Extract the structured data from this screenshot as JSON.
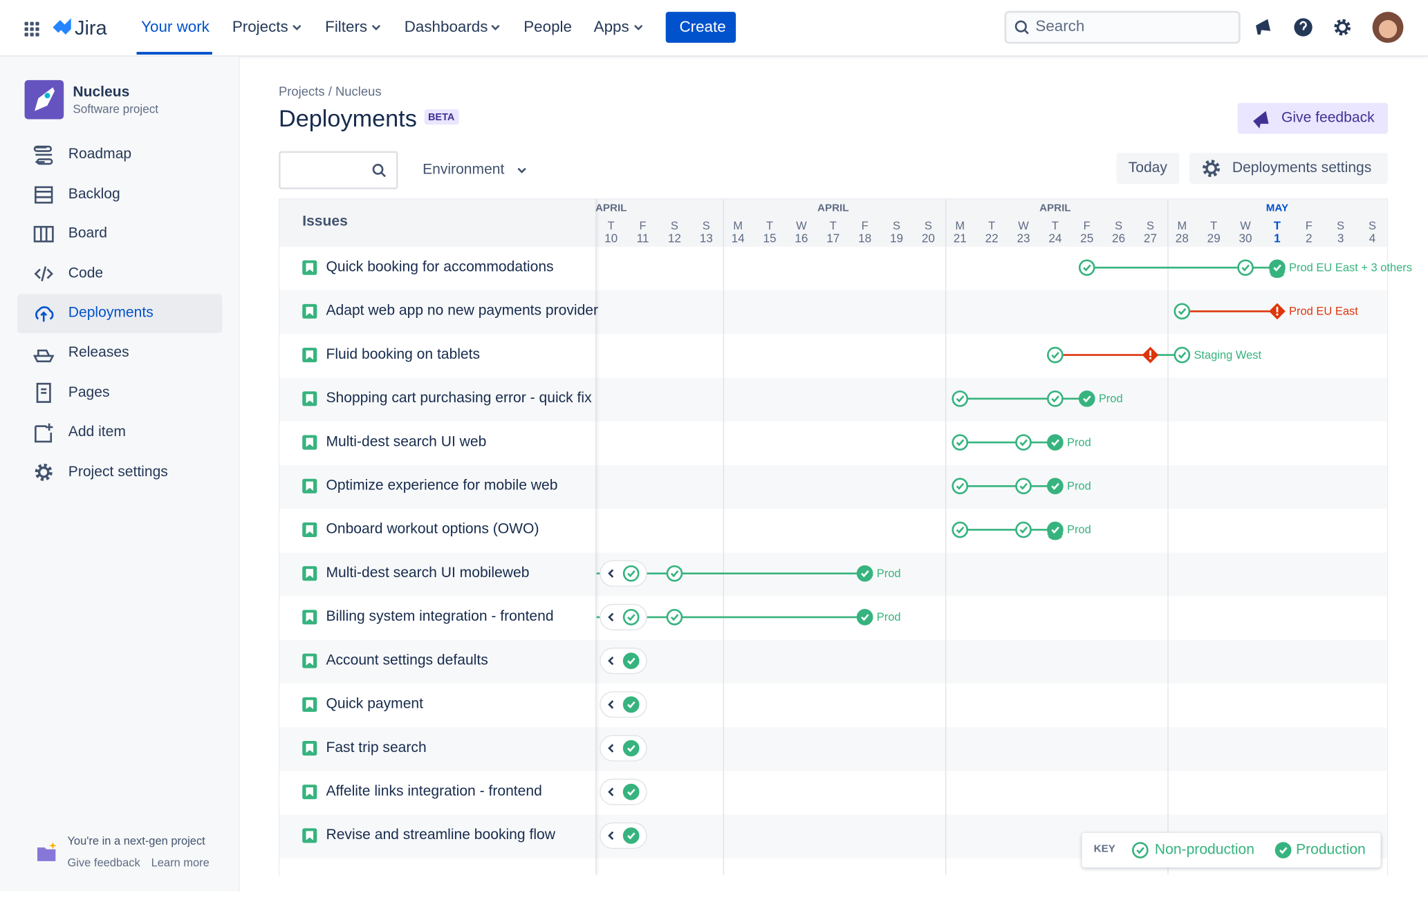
{
  "nav": {
    "logo": "Jira",
    "items": [
      "Your work",
      "Projects",
      "Filters",
      "Dashboards",
      "People",
      "Apps"
    ],
    "create": "Create",
    "search": "Search"
  },
  "sidebar": {
    "project": {
      "name": "Nucleus",
      "type": "Software project"
    },
    "items": [
      "Roadmap",
      "Backlog",
      "Board",
      "Code",
      "Deployments",
      "Releases",
      "Pages",
      "Add item",
      "Project settings"
    ],
    "notice": "You're in a next-gen project",
    "links": [
      "Give feedback",
      "Learn more"
    ]
  },
  "header": {
    "breadcrumb": "Projects / Nucleus",
    "title": "Deployments",
    "badge": "BETA",
    "feedback": "Give feedback"
  },
  "toolbar": {
    "filter": "Environment",
    "today": "Today",
    "settings": "Deployments settings"
  },
  "timeline": {
    "issues_header": "Issues",
    "months": [
      "APRIL",
      "APRIL",
      "APRIL",
      "MAY"
    ],
    "days": [
      {
        "weekday": "T",
        "date": "10"
      },
      {
        "weekday": "F",
        "date": "11"
      },
      {
        "weekday": "S",
        "date": "12"
      },
      {
        "weekday": "S",
        "date": "13"
      },
      {
        "weekday": "M",
        "date": "14"
      },
      {
        "weekday": "T",
        "date": "15"
      },
      {
        "weekday": "W",
        "date": "16"
      },
      {
        "weekday": "T",
        "date": "17"
      },
      {
        "weekday": "F",
        "date": "18"
      },
      {
        "weekday": "S",
        "date": "19"
      },
      {
        "weekday": "S",
        "date": "20"
      },
      {
        "weekday": "M",
        "date": "21"
      },
      {
        "weekday": "T",
        "date": "22"
      },
      {
        "weekday": "W",
        "date": "23"
      },
      {
        "weekday": "T",
        "date": "24"
      },
      {
        "weekday": "F",
        "date": "25"
      },
      {
        "weekday": "S",
        "date": "26"
      },
      {
        "weekday": "S",
        "date": "27"
      },
      {
        "weekday": "M",
        "date": "28"
      },
      {
        "weekday": "T",
        "date": "29"
      },
      {
        "weekday": "W",
        "date": "30"
      },
      {
        "weekday": "T",
        "date": "1"
      },
      {
        "weekday": "F",
        "date": "2"
      },
      {
        "weekday": "S",
        "date": "3"
      },
      {
        "weekday": "S",
        "date": "4"
      }
    ],
    "issues": [
      {
        "name": "Quick booking for accommodations",
        "environment": "Prod EU East + 3 others"
      },
      {
        "name": "Adapt web app no new payments provider",
        "environment": "Prod EU East"
      },
      {
        "name": "Fluid booking on tablets",
        "environment": "Staging West"
      },
      {
        "name": "Shopping cart purchasing error - quick fix",
        "environment": "Prod"
      },
      {
        "name": "Multi-dest search UI web",
        "environment": "Prod"
      },
      {
        "name": "Optimize experience for mobile web",
        "environment": "Prod"
      },
      {
        "name": "Onboard workout options (OWO)",
        "environment": "Prod"
      },
      {
        "name": "Multi-dest search UI mobileweb",
        "environment": "Prod"
      },
      {
        "name": "Billing system integration - frontend",
        "environment": "Prod"
      },
      {
        "name": "Account settings defaults"
      },
      {
        "name": "Quick payment"
      },
      {
        "name": "Fast trip search"
      },
      {
        "name": "Affelite links integration - frontend"
      },
      {
        "name": "Revise and streamline booking flow"
      }
    ]
  },
  "key": {
    "title": "KEY",
    "items": [
      "Non-production",
      "Production"
    ]
  }
}
